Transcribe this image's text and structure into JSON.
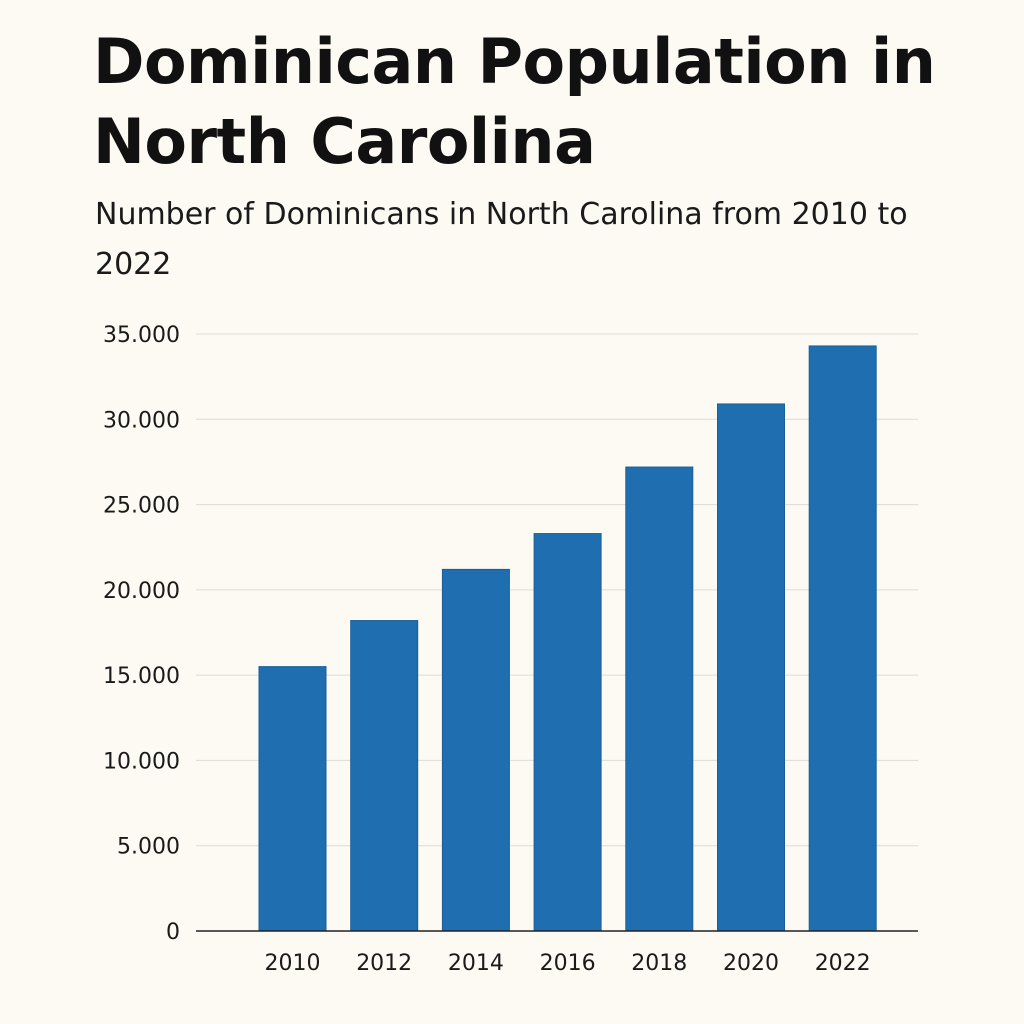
{
  "chart_data": {
    "type": "bar",
    "title": "Dominican Population in North Carolina",
    "subtitle": "Number of Dominicans in North Carolina from 2010 to 2022",
    "xlabel": "",
    "ylabel": "",
    "categories": [
      "2010",
      "2012",
      "2014",
      "2016",
      "2018",
      "2020",
      "2022"
    ],
    "values": [
      15500,
      18200,
      21200,
      23300,
      27200,
      30900,
      34300
    ],
    "ylim": [
      0,
      35000
    ],
    "yticks": [
      0,
      5000,
      10000,
      15000,
      20000,
      25000,
      30000,
      35000
    ],
    "ytick_labels": [
      "0",
      "5.000",
      "10.000",
      "15.000",
      "20.000",
      "25.000",
      "30.000",
      "35.000"
    ],
    "grid": true,
    "legend": "none",
    "colors": {
      "bar": "#1f6fb0",
      "bar_edge": "#1a5f99",
      "grid": "#dcdcd6",
      "axis": "#222222",
      "background": "#fdfaf3"
    }
  }
}
